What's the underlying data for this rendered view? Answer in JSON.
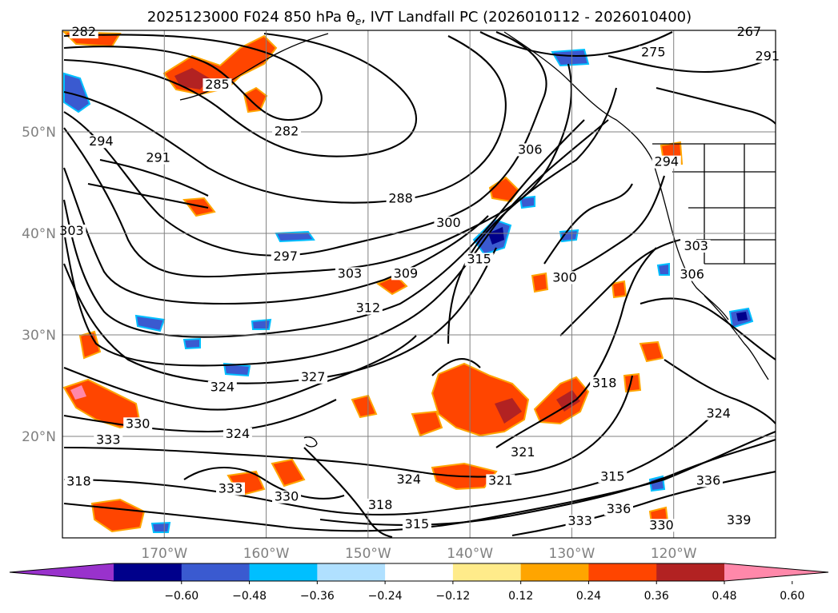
{
  "figure": {
    "title": "2025123000 F024 850 hPa θe, IVT Landfall PC (2026010112 - 2026010400)",
    "title_prefix": "2025123000 F024 850 hPa θ",
    "title_sub": "e",
    "title_suffix": ", IVT Landfall PC (2026010112 - 2026010400)"
  },
  "map": {
    "lon_range": [
      -180,
      -110
    ],
    "lat_range": [
      10,
      60
    ],
    "lon_ticks": [
      {
        "value": -170,
        "label": "170°W"
      },
      {
        "value": -160,
        "label": "160°W"
      },
      {
        "value": -150,
        "label": "150°W"
      },
      {
        "value": -140,
        "label": "140°W"
      },
      {
        "value": -130,
        "label": "130°W"
      },
      {
        "value": -120,
        "label": "120°W"
      }
    ],
    "lat_ticks": [
      {
        "value": 50,
        "label": "50°N"
      },
      {
        "value": 40,
        "label": "40°N"
      },
      {
        "value": 30,
        "label": "30°N"
      },
      {
        "value": 20,
        "label": "20°N"
      }
    ],
    "grid": true,
    "contour_line_color": "#000000",
    "contour_labels": [
      {
        "text": "282",
        "lon": -177.9,
        "lat": 59.6
      },
      {
        "text": "282",
        "lon": -158.0,
        "lat": 49.8
      },
      {
        "text": "285",
        "lon": -164.8,
        "lat": 54.4
      },
      {
        "text": "291",
        "lon": -170.6,
        "lat": 47.2
      },
      {
        "text": "294",
        "lon": -176.2,
        "lat": 48.8
      },
      {
        "text": "303",
        "lon": -179.1,
        "lat": 40.0
      },
      {
        "text": "288",
        "lon": -146.8,
        "lat": 43.2
      },
      {
        "text": "300",
        "lon": -142.1,
        "lat": 40.8
      },
      {
        "text": "297",
        "lon": -158.1,
        "lat": 37.5
      },
      {
        "text": "303",
        "lon": -151.8,
        "lat": 35.8
      },
      {
        "text": "309",
        "lon": -146.3,
        "lat": 35.8
      },
      {
        "text": "315",
        "lon": -139.1,
        "lat": 37.2
      },
      {
        "text": "306",
        "lon": -134.1,
        "lat": 48.0
      },
      {
        "text": "300",
        "lon": -130.7,
        "lat": 35.4
      },
      {
        "text": "312",
        "lon": -150.0,
        "lat": 32.4
      },
      {
        "text": "327",
        "lon": -155.4,
        "lat": 25.6
      },
      {
        "text": "324",
        "lon": -164.3,
        "lat": 24.6
      },
      {
        "text": "330",
        "lon": -172.6,
        "lat": 21.0
      },
      {
        "text": "333",
        "lon": -175.5,
        "lat": 19.4
      },
      {
        "text": "324",
        "lon": -162.8,
        "lat": 20.0
      },
      {
        "text": "321",
        "lon": -134.8,
        "lat": 18.2
      },
      {
        "text": "318",
        "lon": -126.8,
        "lat": 25.0
      },
      {
        "text": "321",
        "lon": -137.0,
        "lat": 15.4
      },
      {
        "text": "324",
        "lon": -146.0,
        "lat": 15.5
      },
      {
        "text": "318",
        "lon": -148.8,
        "lat": 13.0
      },
      {
        "text": "315",
        "lon": -145.2,
        "lat": 11.1
      },
      {
        "text": "330",
        "lon": -158.0,
        "lat": 13.8
      },
      {
        "text": "333",
        "lon": -163.5,
        "lat": 14.6
      },
      {
        "text": "336",
        "lon": -125.4,
        "lat": 12.6
      },
      {
        "text": "333",
        "lon": -129.2,
        "lat": 11.4
      },
      {
        "text": "330",
        "lon": -121.2,
        "lat": 11.0
      },
      {
        "text": "336",
        "lon": -116.6,
        "lat": 15.4
      },
      {
        "text": "339",
        "lon": -113.6,
        "lat": 11.5
      },
      {
        "text": "324",
        "lon": -115.6,
        "lat": 22.0
      },
      {
        "text": "315",
        "lon": -126.0,
        "lat": 15.8
      },
      {
        "text": "318",
        "lon": -178.4,
        "lat": 15.3
      },
      {
        "text": "294",
        "lon": -120.7,
        "lat": 46.8
      },
      {
        "text": "303",
        "lon": -117.8,
        "lat": 38.5
      },
      {
        "text": "306",
        "lon": -118.2,
        "lat": 35.7
      },
      {
        "text": "267",
        "lon": -112.6,
        "lat": 59.6
      },
      {
        "text": "275",
        "lon": -122.0,
        "lat": 57.6
      },
      {
        "text": "291",
        "lon": -110.8,
        "lat": 57.2
      }
    ]
  },
  "colorbar": {
    "levels": [
      -0.6,
      -0.48,
      -0.36,
      -0.24,
      -0.12,
      0.12,
      0.24,
      0.36,
      0.48,
      0.6
    ],
    "tick_labels": [
      "−0.60",
      "−0.48",
      "−0.36",
      "−0.24",
      "−0.12",
      "0.12",
      "0.24",
      "0.36",
      "0.48",
      "0.60"
    ],
    "colors": [
      "#9932cc",
      "#00008b",
      "#3a5ad0",
      "#00bfff",
      "#b0e0ff",
      "#ffffff",
      "#ffeb8a",
      "#ffa500",
      "#ff4500",
      "#b22222",
      "#ff88aa"
    ],
    "extend": "both"
  },
  "shading": {
    "positive_colors": {
      "weak": "#ffeb8a",
      "mid": "#ffa500",
      "strong": "#ff4500",
      "max": "#b22222",
      "extreme": "#ff88aa"
    },
    "negative_colors": {
      "weak": "#b0e0ff",
      "mid": "#00bfff",
      "strong": "#3a5ad0",
      "max": "#00008b"
    }
  }
}
